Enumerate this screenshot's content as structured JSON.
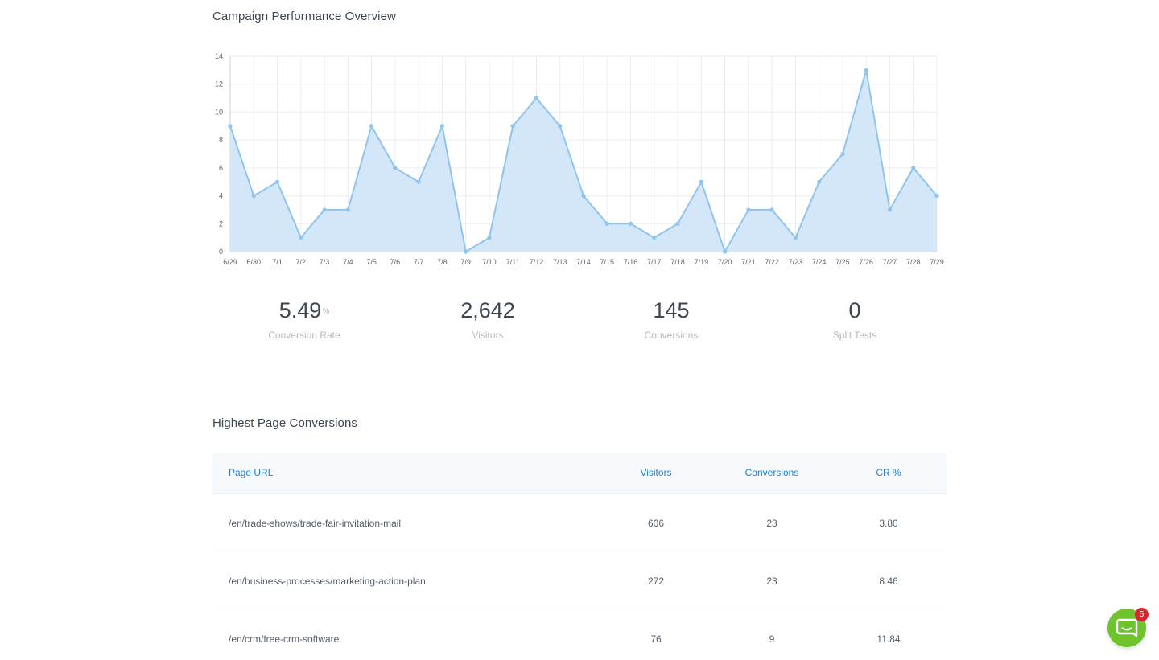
{
  "campaign_title": "Campaign Performance Overview",
  "highest_title": "Highest Page Conversions",
  "chart_data": {
    "type": "area",
    "x": [
      "6/29",
      "6/30",
      "7/1",
      "7/2",
      "7/3",
      "7/4",
      "7/5",
      "7/6",
      "7/7",
      "7/8",
      "7/9",
      "7/10",
      "7/11",
      "7/12",
      "7/13",
      "7/14",
      "7/15",
      "7/16",
      "7/17",
      "7/18",
      "7/19",
      "7/20",
      "7/21",
      "7/22",
      "7/23",
      "7/24",
      "7/25",
      "7/26",
      "7/27",
      "7/28",
      "7/29"
    ],
    "series": [
      {
        "values": [
          9,
          4,
          5,
          1,
          3,
          3,
          9,
          6,
          5,
          9,
          0,
          1,
          9,
          11,
          9,
          4,
          2,
          2,
          1,
          2,
          5,
          0,
          3,
          3,
          1,
          5,
          7,
          13,
          3,
          6,
          4
        ]
      }
    ],
    "ylim": [
      0,
      14
    ],
    "yticks": [
      0,
      2,
      4,
      6,
      8,
      10,
      12,
      14
    ],
    "grid": true,
    "colors": {
      "line": "#91c4ec",
      "fill": "#d3e7f8",
      "grid": "#e9ecef",
      "axis": "#c9ced3",
      "tick": "#5c646c"
    }
  },
  "stats": [
    {
      "value": "5.49",
      "unit": "%",
      "label": "Conversion Rate"
    },
    {
      "value": "2,642",
      "unit": "",
      "label": "Visitors"
    },
    {
      "value": "145",
      "unit": "",
      "label": "Conversions"
    },
    {
      "value": "0",
      "unit": "",
      "label": "Split Tests"
    }
  ],
  "table": {
    "headers": {
      "url": "Page URL",
      "visitors": "Visitors",
      "conversions": "Conversions",
      "cr": "CR %"
    },
    "rows": [
      {
        "url": "/en/trade-shows/trade-fair-invitation-mail",
        "visitors": "606",
        "conversions": "23",
        "cr": "3.80"
      },
      {
        "url": "/en/business-processes/marketing-action-plan",
        "visitors": "272",
        "conversions": "23",
        "cr": "8.46"
      },
      {
        "url": "/en/crm/free-crm-software",
        "visitors": "76",
        "conversions": "9",
        "cr": "11.84"
      }
    ]
  },
  "chat": {
    "icon": "chat-icon",
    "badge": "5",
    "color": "#6fc32c",
    "badge_color": "#d7262f"
  }
}
